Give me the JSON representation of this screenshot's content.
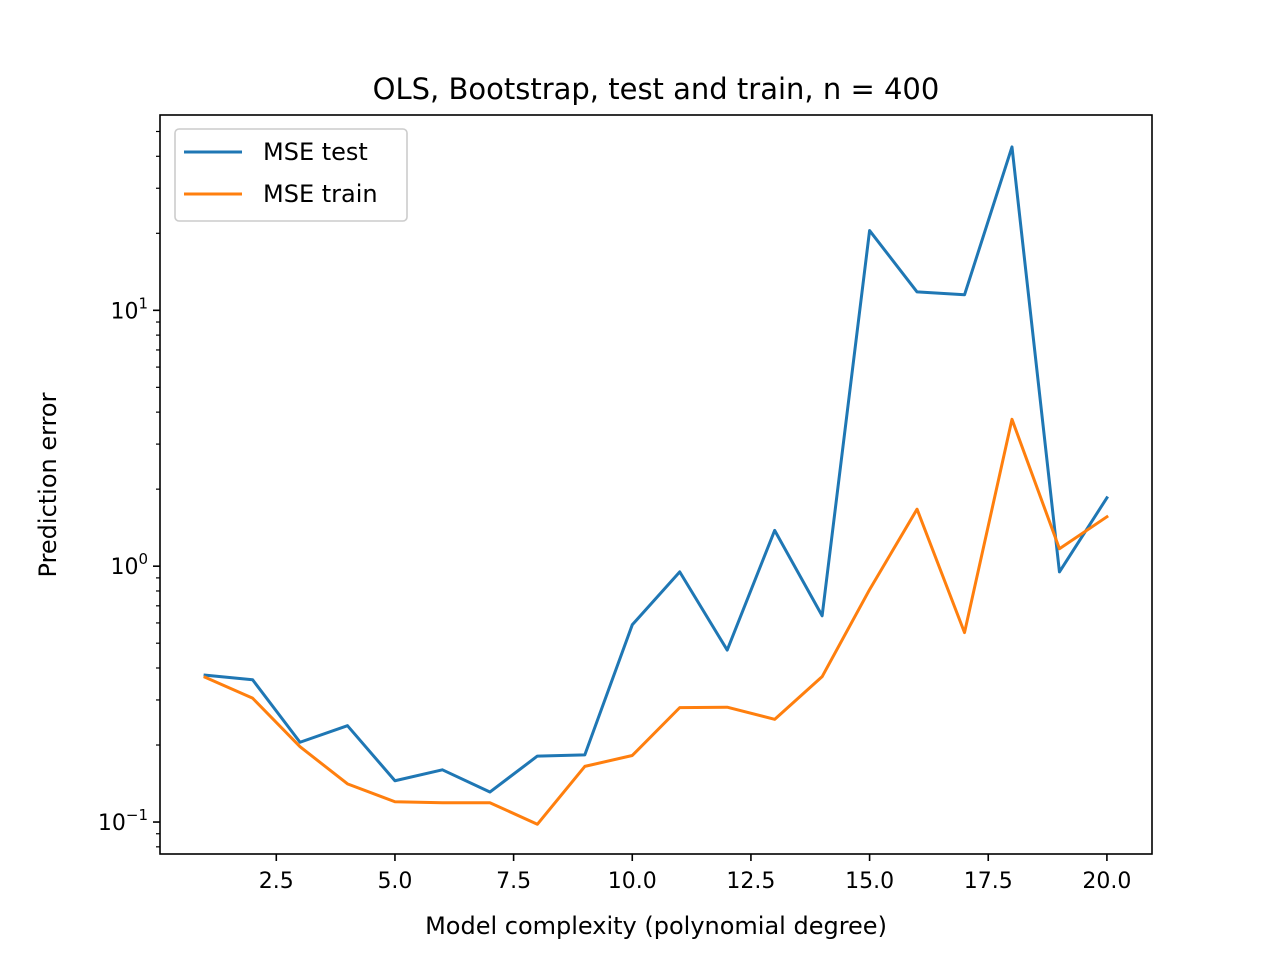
{
  "chart_data": {
    "type": "line",
    "title": "OLS, Bootstrap, test and train, n = 400",
    "xlabel": "Model complexity (polynomial degree)",
    "ylabel": "Prediction error",
    "yscale": "log",
    "xlim": [
      0.05,
      20.95
    ],
    "ylim": [
      0.075,
      58
    ],
    "x_ticks": [
      2.5,
      5.0,
      7.5,
      10.0,
      12.5,
      15.0,
      17.5,
      20.0
    ],
    "x_tick_labels": [
      "2.5",
      "5.0",
      "7.5",
      "10.0",
      "12.5",
      "15.0",
      "17.5",
      "20.0"
    ],
    "y_major_ticks": [
      {
        "value": 0.1,
        "base": "10",
        "exp": "−1"
      },
      {
        "value": 1,
        "base": "10",
        "exp": "0"
      },
      {
        "value": 10,
        "base": "10",
        "exp": "1"
      }
    ],
    "grid": false,
    "legend_position": "top-left",
    "x": [
      1,
      2,
      3,
      4,
      5,
      6,
      7,
      8,
      9,
      10,
      11,
      12,
      13,
      14,
      15,
      16,
      17,
      18,
      19,
      20
    ],
    "series": [
      {
        "name": "MSE test",
        "color": "#1f77b4",
        "values": [
          0.375,
          0.36,
          0.205,
          0.238,
          0.145,
          0.16,
          0.131,
          0.181,
          0.183,
          0.59,
          0.95,
          0.47,
          1.38,
          0.64,
          20.5,
          11.8,
          11.5,
          43.5,
          0.95,
          1.85
        ]
      },
      {
        "name": "MSE train",
        "color": "#ff7f0e",
        "values": [
          0.368,
          0.305,
          0.197,
          0.141,
          0.12,
          0.119,
          0.119,
          0.098,
          0.165,
          0.182,
          0.28,
          0.281,
          0.252,
          0.37,
          0.81,
          1.67,
          0.55,
          3.75,
          1.17,
          1.56
        ]
      }
    ]
  }
}
